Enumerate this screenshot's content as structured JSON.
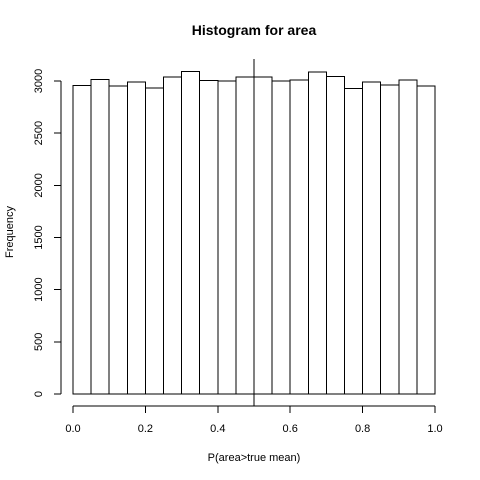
{
  "chart_data": {
    "type": "bar",
    "title": "Histogram for area",
    "xlabel": "P(area>true mean)",
    "ylabel": "Frequency",
    "xlim": [
      0,
      1
    ],
    "ylim": [
      0,
      3000
    ],
    "x_ticks": [
      0.0,
      0.2,
      0.4,
      0.6,
      0.8,
      1.0
    ],
    "x_tick_labels": [
      "0.0",
      "0.2",
      "0.4",
      "0.6",
      "0.8",
      "1.0"
    ],
    "y_ticks": [
      0,
      500,
      1000,
      1500,
      2000,
      2500,
      3000
    ],
    "y_tick_labels": [
      "0",
      "500",
      "1000",
      "1500",
      "2000",
      "2500",
      "3000"
    ],
    "bin_edges": [
      0.0,
      0.05,
      0.1,
      0.15,
      0.2,
      0.25,
      0.3,
      0.35,
      0.4,
      0.45,
      0.5,
      0.55,
      0.6,
      0.65,
      0.7,
      0.75,
      0.8,
      0.85,
      0.9,
      0.95,
      1.0
    ],
    "values": [
      2955,
      3015,
      2950,
      2990,
      2935,
      3040,
      3090,
      3005,
      3000,
      3040,
      3040,
      3000,
      3010,
      3085,
      3045,
      2930,
      2990,
      2960,
      3010,
      2950
    ],
    "reference_line_x": 0.5,
    "grid": false,
    "legend": "none"
  }
}
